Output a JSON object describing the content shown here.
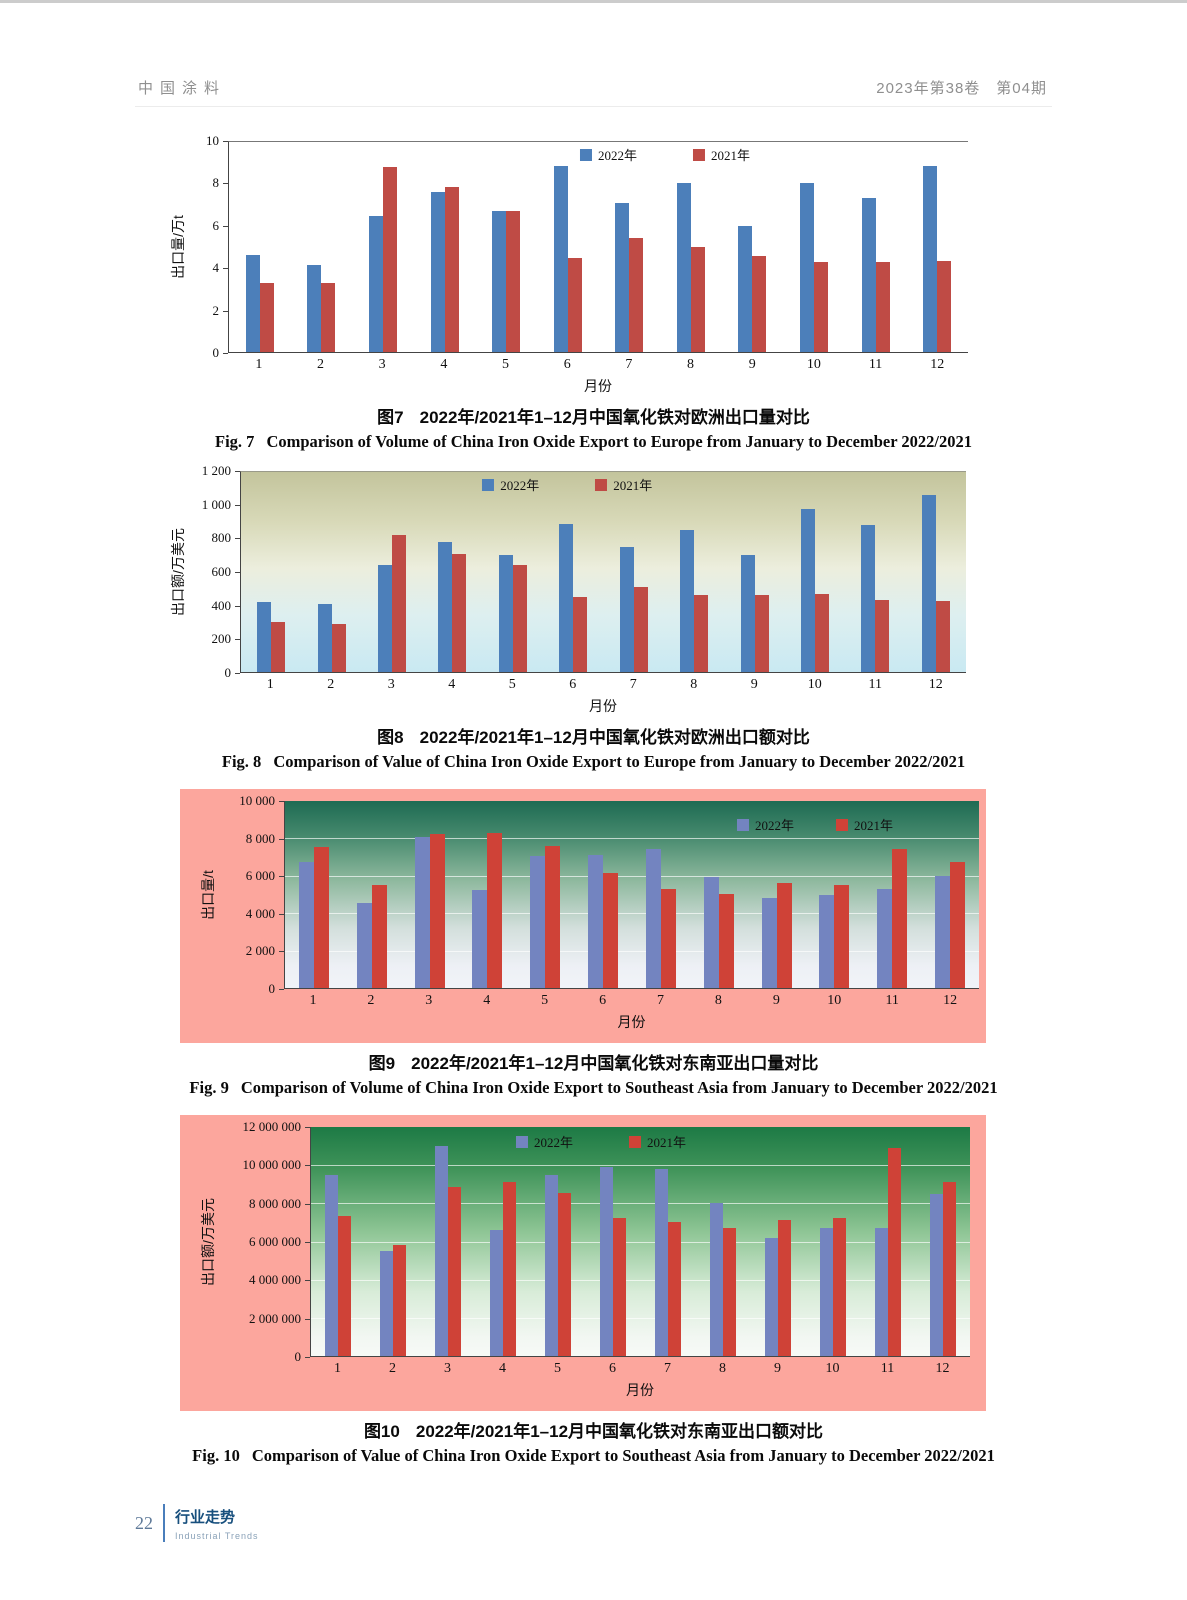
{
  "header": {
    "journal": "中国涂料",
    "issue": "2023年第38卷　第04期"
  },
  "chart_data": [
    {
      "id": "fig7",
      "type": "bar",
      "title_cn": "图7",
      "caption_cn_text": "2022年/2021年1–12月中国氧化铁对欧洲出口量对比",
      "title_en": "Fig. 7",
      "caption_en_text": "Comparison of Volume of China Iron Oxide Export to Europe from January to December 2022/2021",
      "ylabel": "出口量/万t",
      "xlabel": "月份",
      "ylim": [
        0,
        10
      ],
      "ymax": 10,
      "grid": false,
      "legend_position": "top-center",
      "yticks": [
        "10",
        "8",
        "6",
        "4",
        "2",
        "0"
      ],
      "categories": [
        "1",
        "2",
        "3",
        "4",
        "5",
        "6",
        "7",
        "8",
        "9",
        "10",
        "11",
        "12"
      ],
      "series": [
        {
          "name": "2022年",
          "color": "#4c7fba",
          "values": [
            4.6,
            4.15,
            6.5,
            7.6,
            6.7,
            8.85,
            7.1,
            8.05,
            6.0,
            8.05,
            7.35,
            8.85
          ]
        },
        {
          "name": "2021年",
          "color": "#bf4b45",
          "values": [
            3.3,
            3.3,
            8.8,
            7.85,
            6.7,
            4.5,
            5.45,
            5.0,
            4.55,
            4.3,
            4.3,
            4.35
          ]
        }
      ]
    },
    {
      "id": "fig8",
      "type": "bar",
      "title_cn": "图8",
      "caption_cn_text": "2022年/2021年1–12月中国氧化铁对欧洲出口额对比",
      "title_en": "Fig. 8",
      "caption_en_text": "Comparison of Value of China Iron Oxide Export to Europe from January to December 2022/2021",
      "ylabel": "出口额/万美元",
      "xlabel": "月份",
      "ylim": [
        0,
        1200
      ],
      "ymax": 1200,
      "grid": false,
      "legend_position": "top-center",
      "yticks": [
        "1 200",
        "1 000",
        "800",
        "600",
        "400",
        "200",
        "0"
      ],
      "categories": [
        "1",
        "2",
        "3",
        "4",
        "5",
        "6",
        "7",
        "8",
        "9",
        "10",
        "11",
        "12"
      ],
      "series": [
        {
          "name": "2022年",
          "color": "#4c7fba",
          "values": [
            420,
            410,
            640,
            780,
            700,
            890,
            750,
            850,
            700,
            980,
            885,
            1065
          ]
        },
        {
          "name": "2021年",
          "color": "#bf4b45",
          "values": [
            300,
            290,
            825,
            710,
            640,
            450,
            510,
            460,
            460,
            470,
            430,
            425
          ]
        }
      ]
    },
    {
      "id": "fig9",
      "type": "bar",
      "title_cn": "图9",
      "caption_cn_text": "2022年/2021年1–12月中国氧化铁对东南亚出口量对比",
      "title_en": "Fig. 9",
      "caption_en_text": "Comparison of Volume of China Iron Oxide Export to Southeast Asia from January to December 2022/2021",
      "ylabel": "出口量/t",
      "xlabel": "月份",
      "ylim": [
        0,
        10000
      ],
      "ymax": 10000,
      "grid": true,
      "legend_position": "top-right",
      "yticks": [
        "10 000",
        "8 000",
        "6 000",
        "4 000",
        "2 000",
        "0"
      ],
      "categories": [
        "1",
        "2",
        "3",
        "4",
        "5",
        "6",
        "7",
        "8",
        "9",
        "10",
        "11",
        "12"
      ],
      "series": [
        {
          "name": "2022年",
          "color": "#7384c0",
          "values": [
            6750,
            4550,
            8100,
            5250,
            7050,
            7100,
            7450,
            5950,
            4800,
            4950,
            5300,
            6000
          ]
        },
        {
          "name": "2021年",
          "color": "#cf4237",
          "values": [
            7550,
            5500,
            8250,
            8300,
            7600,
            6150,
            5300,
            5050,
            5600,
            5500,
            7450,
            6750
          ]
        }
      ]
    },
    {
      "id": "fig10",
      "type": "bar",
      "title_cn": "图10",
      "caption_cn_text": "2022年/2021年1–12月中国氧化铁对东南亚出口额对比",
      "title_en": "Fig. 10",
      "caption_en_text": "Comparison of Value of China Iron Oxide Export to Southeast Asia from January to December 2022/2021",
      "ylabel": "出口额/万美元",
      "xlabel": "月份",
      "ylim": [
        0,
        12000000
      ],
      "ymax": 12000000,
      "grid": true,
      "legend_position": "top-center",
      "yticks": [
        "12 000 000",
        "10 000 000",
        "8 000 000",
        "6 000 000",
        "4 000 000",
        "2 000 000",
        "0"
      ],
      "categories": [
        "1",
        "2",
        "3",
        "4",
        "5",
        "6",
        "7",
        "8",
        "9",
        "10",
        "11",
        "12"
      ],
      "series": [
        {
          "name": "2022年",
          "color": "#7384c0",
          "values": [
            9500000,
            5500000,
            11000000,
            6600000,
            9500000,
            9900000,
            9800000,
            8000000,
            6200000,
            6700000,
            6700000,
            8500000
          ]
        },
        {
          "name": "2021年",
          "color": "#cf4237",
          "values": [
            7350000,
            5800000,
            8850000,
            9100000,
            8550000,
            7250000,
            7000000,
            6700000,
            7150000,
            7250000,
            10900000,
            9100000
          ]
        }
      ]
    }
  ],
  "footer": {
    "page": "22",
    "section_cn": "行业走势",
    "section_en": "Industrial Trends"
  }
}
